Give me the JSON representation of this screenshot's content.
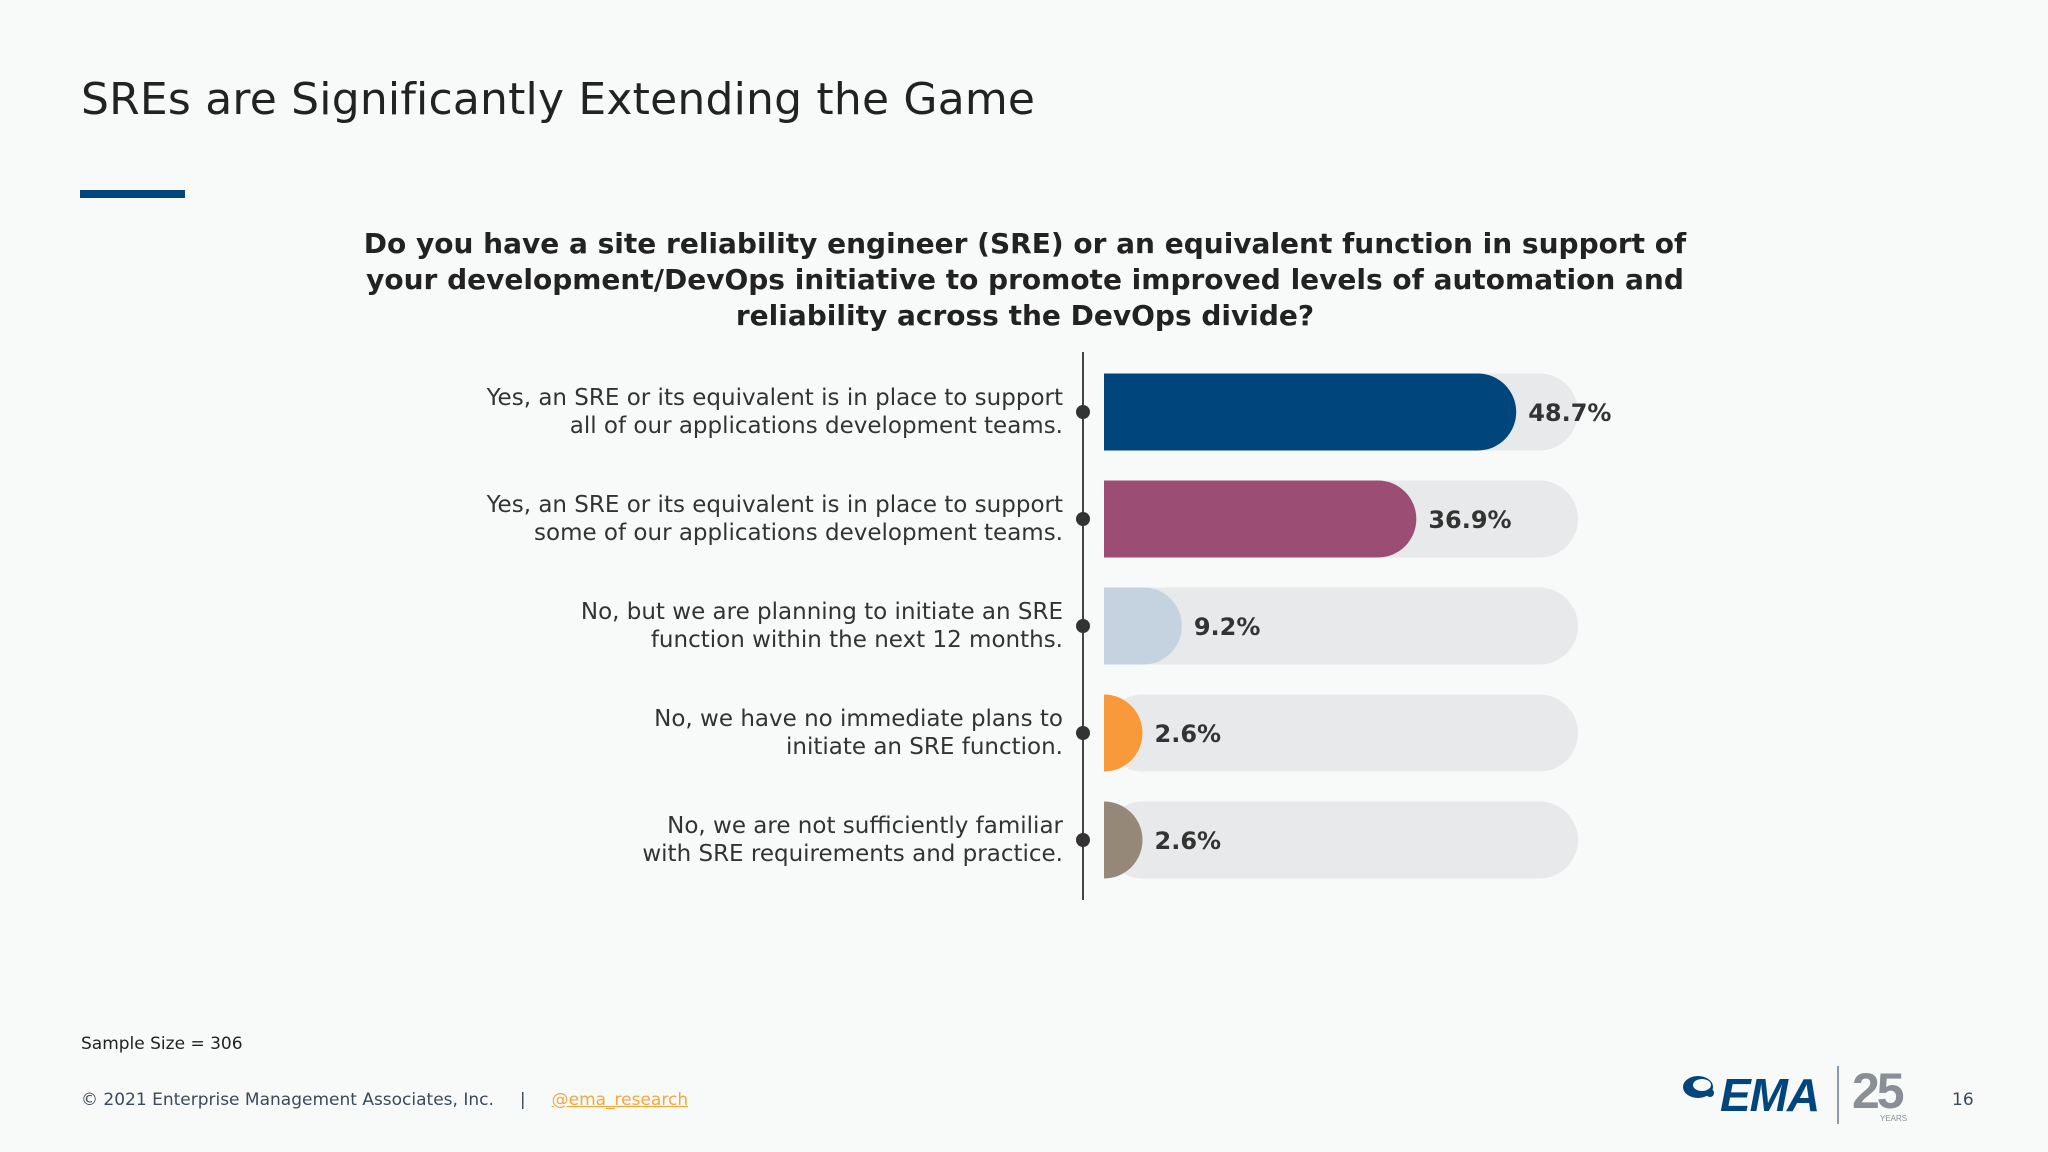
{
  "slide": {
    "title": "SREs are Significantly Extending the Game",
    "question": "Do you have a site reliability engineer (SRE) or an equivalent function in support of your development/DevOps initiative to promote improved levels of automation and reliability across the DevOps divide?",
    "sample_size": "Sample Size = 306",
    "copyright": "© 2021 Enterprise Management Associates, Inc.",
    "separator": "|",
    "twitter": "@ema_research",
    "page_number": "16",
    "logo_text": "EMA",
    "logo_anniversary": "25",
    "logo_years": "YEARS",
    "accent_color": "#00457c"
  },
  "chart_data": {
    "type": "bar",
    "orientation": "horizontal",
    "title": "Do you have a site reliability engineer (SRE) or an equivalent function in support of your development/DevOps initiative to promote improved levels of automation and reliability across the DevOps divide?",
    "categories": [
      "Yes, an SRE or its equivalent is in place to support all of our applications development teams.",
      "Yes, an SRE or its equivalent is in place to support some of our applications development teams.",
      "No, but we are planning to initiate an SRE function within the next 12 months.",
      "No, we have no immediate plans to initiate an SRE function.",
      "No, we are not sufficiently familiar with SRE requirements and practice."
    ],
    "category_lines": [
      [
        "Yes, an SRE or its equivalent is in place to support",
        "all of our applications development teams."
      ],
      [
        "Yes, an SRE or its equivalent is in place to support",
        "some of our applications development teams."
      ],
      [
        "No, but we are planning to initiate an SRE",
        "function within the next 12 months."
      ],
      [
        "No, we have no immediate plans to",
        "initiate an SRE function."
      ],
      [
        "No, we are not sufficiently familiar",
        "with SRE requirements and practice."
      ]
    ],
    "values": [
      48.7,
      36.9,
      9.2,
      2.6,
      2.6
    ],
    "value_labels": [
      "48.7%",
      "36.9%",
      "9.2%",
      "2.6%",
      "2.6%"
    ],
    "colors": [
      "#00457c",
      "#9b4d73",
      "#c5d3e1",
      "#f8993a",
      "#968878"
    ],
    "track_color": "#e8e9ea",
    "unit": "%",
    "xlim": [
      0,
      56
    ]
  }
}
